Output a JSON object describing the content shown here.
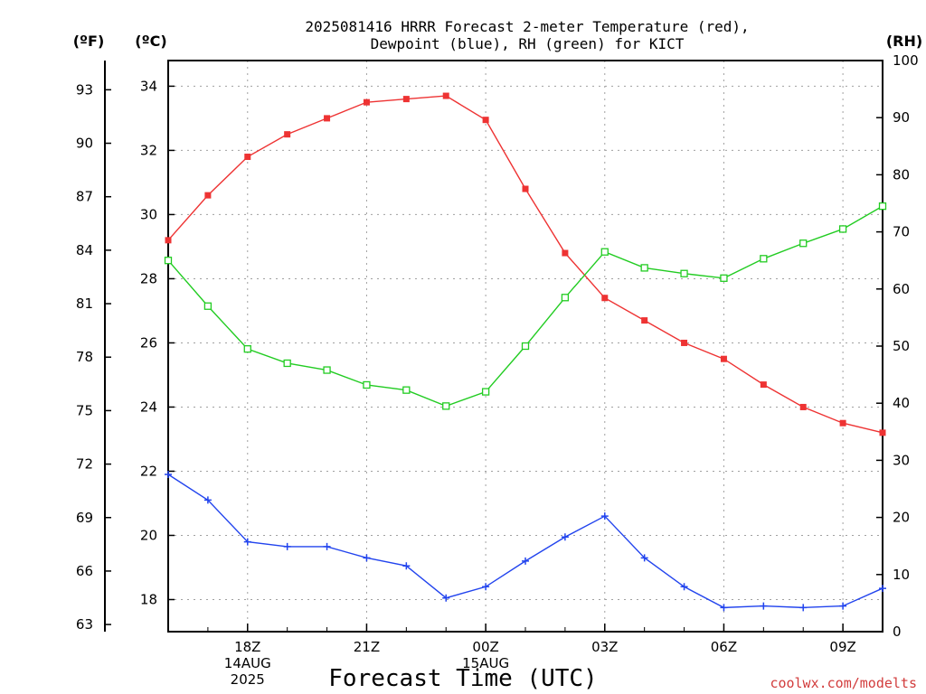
{
  "title": {
    "line1": "2025081416 HRRR Forecast 2-meter Temperature (red),",
    "line2": "Dewpoint (blue), RH (green) for KICT"
  },
  "units": {
    "left_f": "(ºF)",
    "left_c": "(ºC)",
    "right_rh": "(RH)"
  },
  "xlabel": "Forecast Time (UTC)",
  "credit": "coolwx.com/modelts",
  "colors": {
    "temperature": "#ee3333",
    "dewpoint": "#2244ee",
    "rh": "#22cc22"
  },
  "chart_data": {
    "type": "line",
    "x_unit": "forecast hour (UTC hours from 16Z 14AUG 2025)",
    "x": [
      0,
      1,
      2,
      3,
      4,
      5,
      6,
      7,
      8,
      9,
      10,
      11,
      12,
      13,
      14,
      15,
      16,
      17,
      18
    ],
    "x_ticks": [
      {
        "x": 2,
        "lines": [
          "18Z",
          "14AUG",
          "2025"
        ]
      },
      {
        "x": 5,
        "lines": [
          "21Z"
        ]
      },
      {
        "x": 8,
        "lines": [
          "00Z",
          "15AUG"
        ]
      },
      {
        "x": 11,
        "lines": [
          "03Z"
        ]
      },
      {
        "x": 14,
        "lines": [
          "06Z"
        ]
      },
      {
        "x": 17,
        "lines": [
          "09Z"
        ]
      }
    ],
    "xlim": [
      0,
      18
    ],
    "celsius_axis": {
      "range": [
        17,
        34.8
      ],
      "ticks": [
        18,
        20,
        22,
        24,
        26,
        28,
        30,
        32,
        34
      ]
    },
    "fahrenheit_axis": {
      "ticks": [
        63,
        66,
        69,
        72,
        75,
        78,
        81,
        84,
        87,
        90,
        93
      ]
    },
    "rh_axis": {
      "range": [
        0,
        100
      ],
      "ticks": [
        0,
        10,
        20,
        30,
        40,
        50,
        60,
        70,
        80,
        90,
        100
      ]
    },
    "grid": true,
    "series": [
      {
        "name": "Temperature",
        "axis": "celsius",
        "marker": "filled-square",
        "values": [
          29.2,
          30.6,
          31.8,
          32.5,
          33.0,
          33.5,
          33.6,
          33.7,
          32.95,
          30.8,
          28.8,
          27.4,
          26.7,
          26.0,
          25.5,
          24.7,
          24.0,
          23.5,
          23.2
        ]
      },
      {
        "name": "Dewpoint",
        "axis": "celsius",
        "marker": "plus",
        "values": [
          21.9,
          21.1,
          19.8,
          19.65,
          19.65,
          19.3,
          19.05,
          18.05,
          18.4,
          19.2,
          19.95,
          20.6,
          19.3,
          18.4,
          17.75,
          17.8,
          17.75,
          17.8,
          18.35
        ]
      },
      {
        "name": "RH",
        "axis": "rh",
        "marker": "open-square",
        "values": [
          65,
          57,
          49.5,
          47,
          45.8,
          43.2,
          42.3,
          39.5,
          42,
          50,
          58.5,
          66.5,
          63.7,
          62.7,
          61.9,
          65.3,
          68,
          70.5,
          74.5
        ]
      }
    ]
  }
}
